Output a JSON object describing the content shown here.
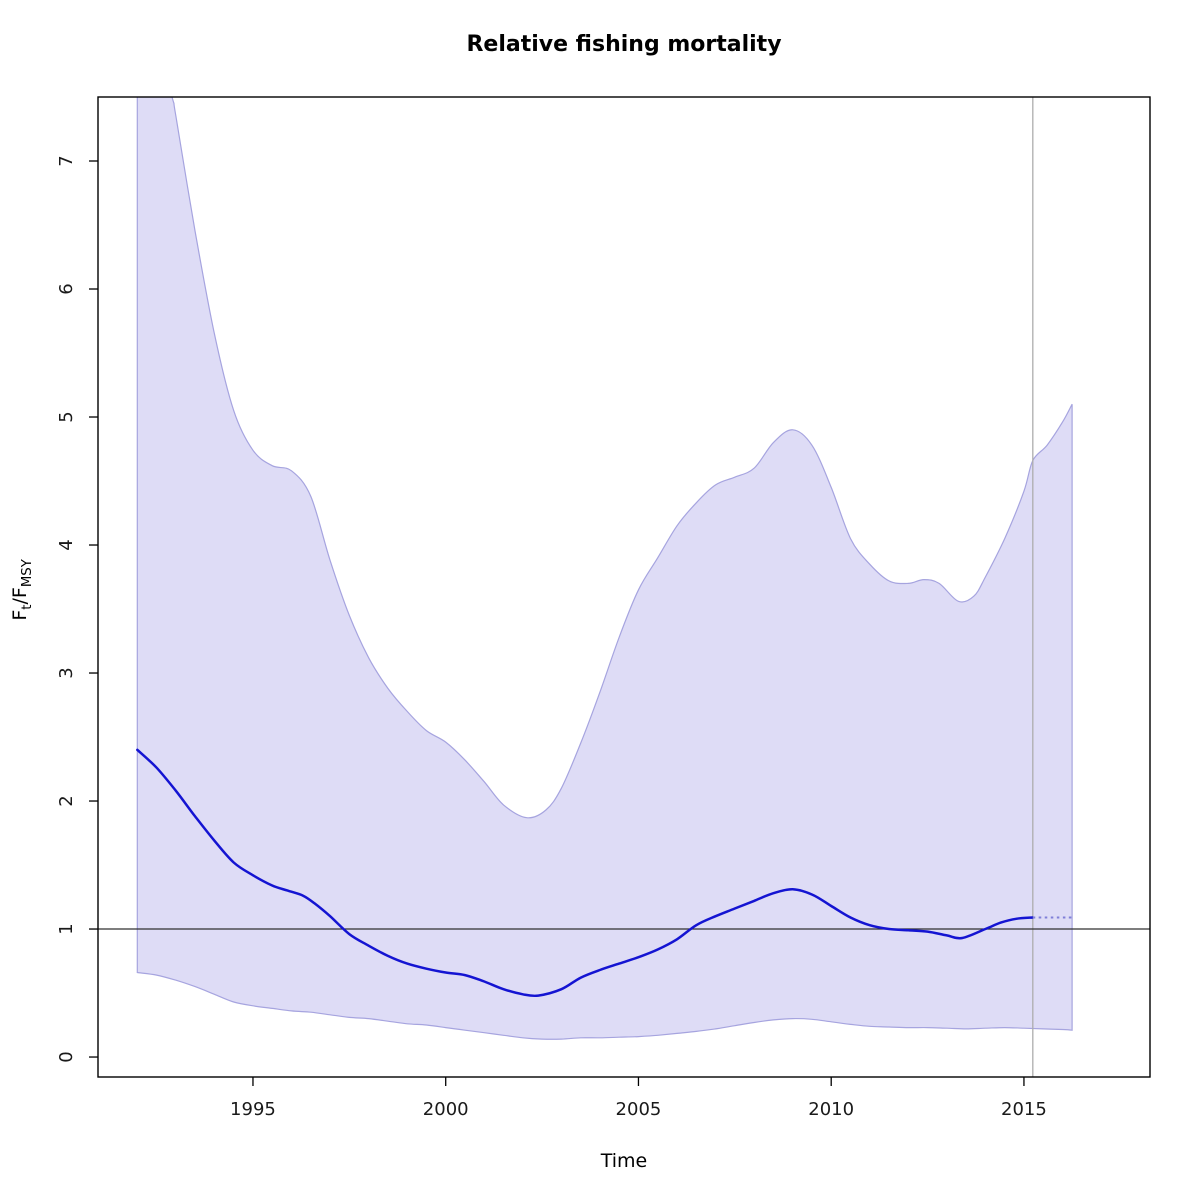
{
  "figure": {
    "title": "Relative fishing mortality",
    "xlabel": "Time",
    "ylabel": {
      "f1": "F",
      "sub1": "t",
      "slash": "/",
      "f2": "F",
      "sub2": "MSY"
    }
  },
  "chart_data": {
    "type": "line",
    "title": "Relative fishing mortality",
    "xlabel": "Time",
    "ylabel": "F_t/F_MSY",
    "xlim": [
      1990.98,
      2018.27
    ],
    "ylim": [
      -0.156,
      7.5
    ],
    "x_ticks": [
      1995,
      2000,
      2005,
      2010,
      2015
    ],
    "y_ticks": [
      0,
      1,
      2,
      3,
      4,
      5,
      6,
      7
    ],
    "grid": false,
    "legend": "none",
    "reference_lines": {
      "horizontal_y": 1,
      "vertical_x": 2015.23
    },
    "colors": {
      "median_line": "#1414d2",
      "forecast_dotted": "#8080d8",
      "band_fill": "#dedcf6",
      "band_stroke": "#a6a4df",
      "reference_horizontal": "#303030",
      "reference_vertical": "#adadad",
      "axis": "#000000"
    },
    "series": [
      {
        "name": "median_F_over_Fmsy",
        "type": "line",
        "points": [
          [
            1992.0,
            2.4
          ],
          [
            1992.5,
            2.26
          ],
          [
            1993.0,
            2.08
          ],
          [
            1993.5,
            1.88
          ],
          [
            1994.0,
            1.69
          ],
          [
            1994.5,
            1.52
          ],
          [
            1995.0,
            1.42
          ],
          [
            1995.5,
            1.34
          ],
          [
            1995.9,
            1.3
          ],
          [
            1996.3,
            1.26
          ],
          [
            1996.6,
            1.2
          ],
          [
            1997.0,
            1.1
          ],
          [
            1997.5,
            0.96
          ],
          [
            1998.0,
            0.87
          ],
          [
            1998.5,
            0.79
          ],
          [
            1999.0,
            0.73
          ],
          [
            1999.5,
            0.69
          ],
          [
            2000.0,
            0.66
          ],
          [
            2000.5,
            0.64
          ],
          [
            2001.0,
            0.59
          ],
          [
            2001.5,
            0.53
          ],
          [
            2002.0,
            0.49
          ],
          [
            2002.4,
            0.48
          ],
          [
            2003.0,
            0.53
          ],
          [
            2003.5,
            0.62
          ],
          [
            2004.0,
            0.68
          ],
          [
            2004.5,
            0.73
          ],
          [
            2005.0,
            0.78
          ],
          [
            2005.5,
            0.84
          ],
          [
            2006.0,
            0.92
          ],
          [
            2006.5,
            1.03
          ],
          [
            2007.0,
            1.1
          ],
          [
            2007.5,
            1.16
          ],
          [
            2008.0,
            1.22
          ],
          [
            2008.5,
            1.28
          ],
          [
            2009.0,
            1.31
          ],
          [
            2009.5,
            1.27
          ],
          [
            2010.0,
            1.18
          ],
          [
            2010.5,
            1.09
          ],
          [
            2011.0,
            1.03
          ],
          [
            2011.5,
            1.0
          ],
          [
            2012.0,
            0.99
          ],
          [
            2012.5,
            0.98
          ],
          [
            2013.0,
            0.95
          ],
          [
            2013.4,
            0.93
          ],
          [
            2014.0,
            1.0
          ],
          [
            2014.4,
            1.05
          ],
          [
            2014.8,
            1.08
          ],
          [
            2015.23,
            1.09
          ]
        ]
      },
      {
        "name": "forecast_median_dotted",
        "type": "line",
        "style": "dotted",
        "points": [
          [
            2015.23,
            1.09
          ],
          [
            2016.25,
            1.09
          ]
        ]
      },
      {
        "name": "confidence_band_upper",
        "type": "band_edge",
        "points": [
          [
            1992.0,
            8.6
          ],
          [
            1992.4,
            8.0
          ],
          [
            1992.9,
            7.5
          ],
          [
            1993.0,
            7.35
          ],
          [
            1993.5,
            6.45
          ],
          [
            1994.0,
            5.65
          ],
          [
            1994.5,
            5.05
          ],
          [
            1995.0,
            4.74
          ],
          [
            1995.5,
            4.62
          ],
          [
            1996.0,
            4.58
          ],
          [
            1996.5,
            4.38
          ],
          [
            1997.0,
            3.88
          ],
          [
            1997.5,
            3.45
          ],
          [
            1998.0,
            3.12
          ],
          [
            1998.5,
            2.88
          ],
          [
            1999.0,
            2.7
          ],
          [
            1999.5,
            2.55
          ],
          [
            2000.0,
            2.46
          ],
          [
            2000.5,
            2.32
          ],
          [
            2001.0,
            2.15
          ],
          [
            2001.5,
            1.97
          ],
          [
            2002.1,
            1.87
          ],
          [
            2002.6,
            1.93
          ],
          [
            2003.0,
            2.1
          ],
          [
            2003.5,
            2.45
          ],
          [
            2004.0,
            2.85
          ],
          [
            2004.5,
            3.28
          ],
          [
            2005.0,
            3.65
          ],
          [
            2005.5,
            3.9
          ],
          [
            2006.0,
            4.15
          ],
          [
            2006.5,
            4.33
          ],
          [
            2007.0,
            4.47
          ],
          [
            2007.5,
            4.53
          ],
          [
            2008.0,
            4.6
          ],
          [
            2008.5,
            4.8
          ],
          [
            2009.0,
            4.9
          ],
          [
            2009.5,
            4.78
          ],
          [
            2010.0,
            4.45
          ],
          [
            2010.5,
            4.05
          ],
          [
            2011.0,
            3.85
          ],
          [
            2011.5,
            3.72
          ],
          [
            2012.0,
            3.7
          ],
          [
            2012.4,
            3.73
          ],
          [
            2012.8,
            3.7
          ],
          [
            2013.3,
            3.56
          ],
          [
            2013.7,
            3.6
          ],
          [
            2014.0,
            3.75
          ],
          [
            2014.5,
            4.05
          ],
          [
            2015.0,
            4.42
          ],
          [
            2015.23,
            4.66
          ],
          [
            2015.6,
            4.78
          ],
          [
            2016.0,
            4.96
          ],
          [
            2016.25,
            5.1
          ]
        ]
      },
      {
        "name": "confidence_band_lower",
        "type": "band_edge",
        "points": [
          [
            1992.0,
            0.66
          ],
          [
            1992.5,
            0.64
          ],
          [
            1993.0,
            0.6
          ],
          [
            1993.5,
            0.55
          ],
          [
            1994.0,
            0.49
          ],
          [
            1994.5,
            0.43
          ],
          [
            1995.0,
            0.4
          ],
          [
            1995.5,
            0.38
          ],
          [
            1996.0,
            0.36
          ],
          [
            1996.5,
            0.35
          ],
          [
            1997.0,
            0.33
          ],
          [
            1997.5,
            0.31
          ],
          [
            1998.0,
            0.3
          ],
          [
            1998.5,
            0.28
          ],
          [
            1999.0,
            0.26
          ],
          [
            1999.5,
            0.25
          ],
          [
            2000.0,
            0.23
          ],
          [
            2000.5,
            0.21
          ],
          [
            2001.0,
            0.19
          ],
          [
            2001.5,
            0.17
          ],
          [
            2002.0,
            0.15
          ],
          [
            2002.5,
            0.14
          ],
          [
            2003.0,
            0.14
          ],
          [
            2003.5,
            0.15
          ],
          [
            2004.0,
            0.15
          ],
          [
            2004.5,
            0.155
          ],
          [
            2005.0,
            0.16
          ],
          [
            2005.5,
            0.17
          ],
          [
            2006.0,
            0.185
          ],
          [
            2006.5,
            0.2
          ],
          [
            2007.0,
            0.22
          ],
          [
            2007.5,
            0.245
          ],
          [
            2008.0,
            0.27
          ],
          [
            2008.5,
            0.29
          ],
          [
            2009.0,
            0.3
          ],
          [
            2009.5,
            0.295
          ],
          [
            2010.0,
            0.275
          ],
          [
            2010.5,
            0.255
          ],
          [
            2011.0,
            0.24
          ],
          [
            2011.5,
            0.235
          ],
          [
            2012.0,
            0.23
          ],
          [
            2012.5,
            0.23
          ],
          [
            2013.0,
            0.225
          ],
          [
            2013.5,
            0.22
          ],
          [
            2014.0,
            0.225
          ],
          [
            2014.5,
            0.23
          ],
          [
            2015.0,
            0.225
          ],
          [
            2015.5,
            0.22
          ],
          [
            2016.0,
            0.215
          ],
          [
            2016.25,
            0.21
          ]
        ]
      }
    ]
  }
}
